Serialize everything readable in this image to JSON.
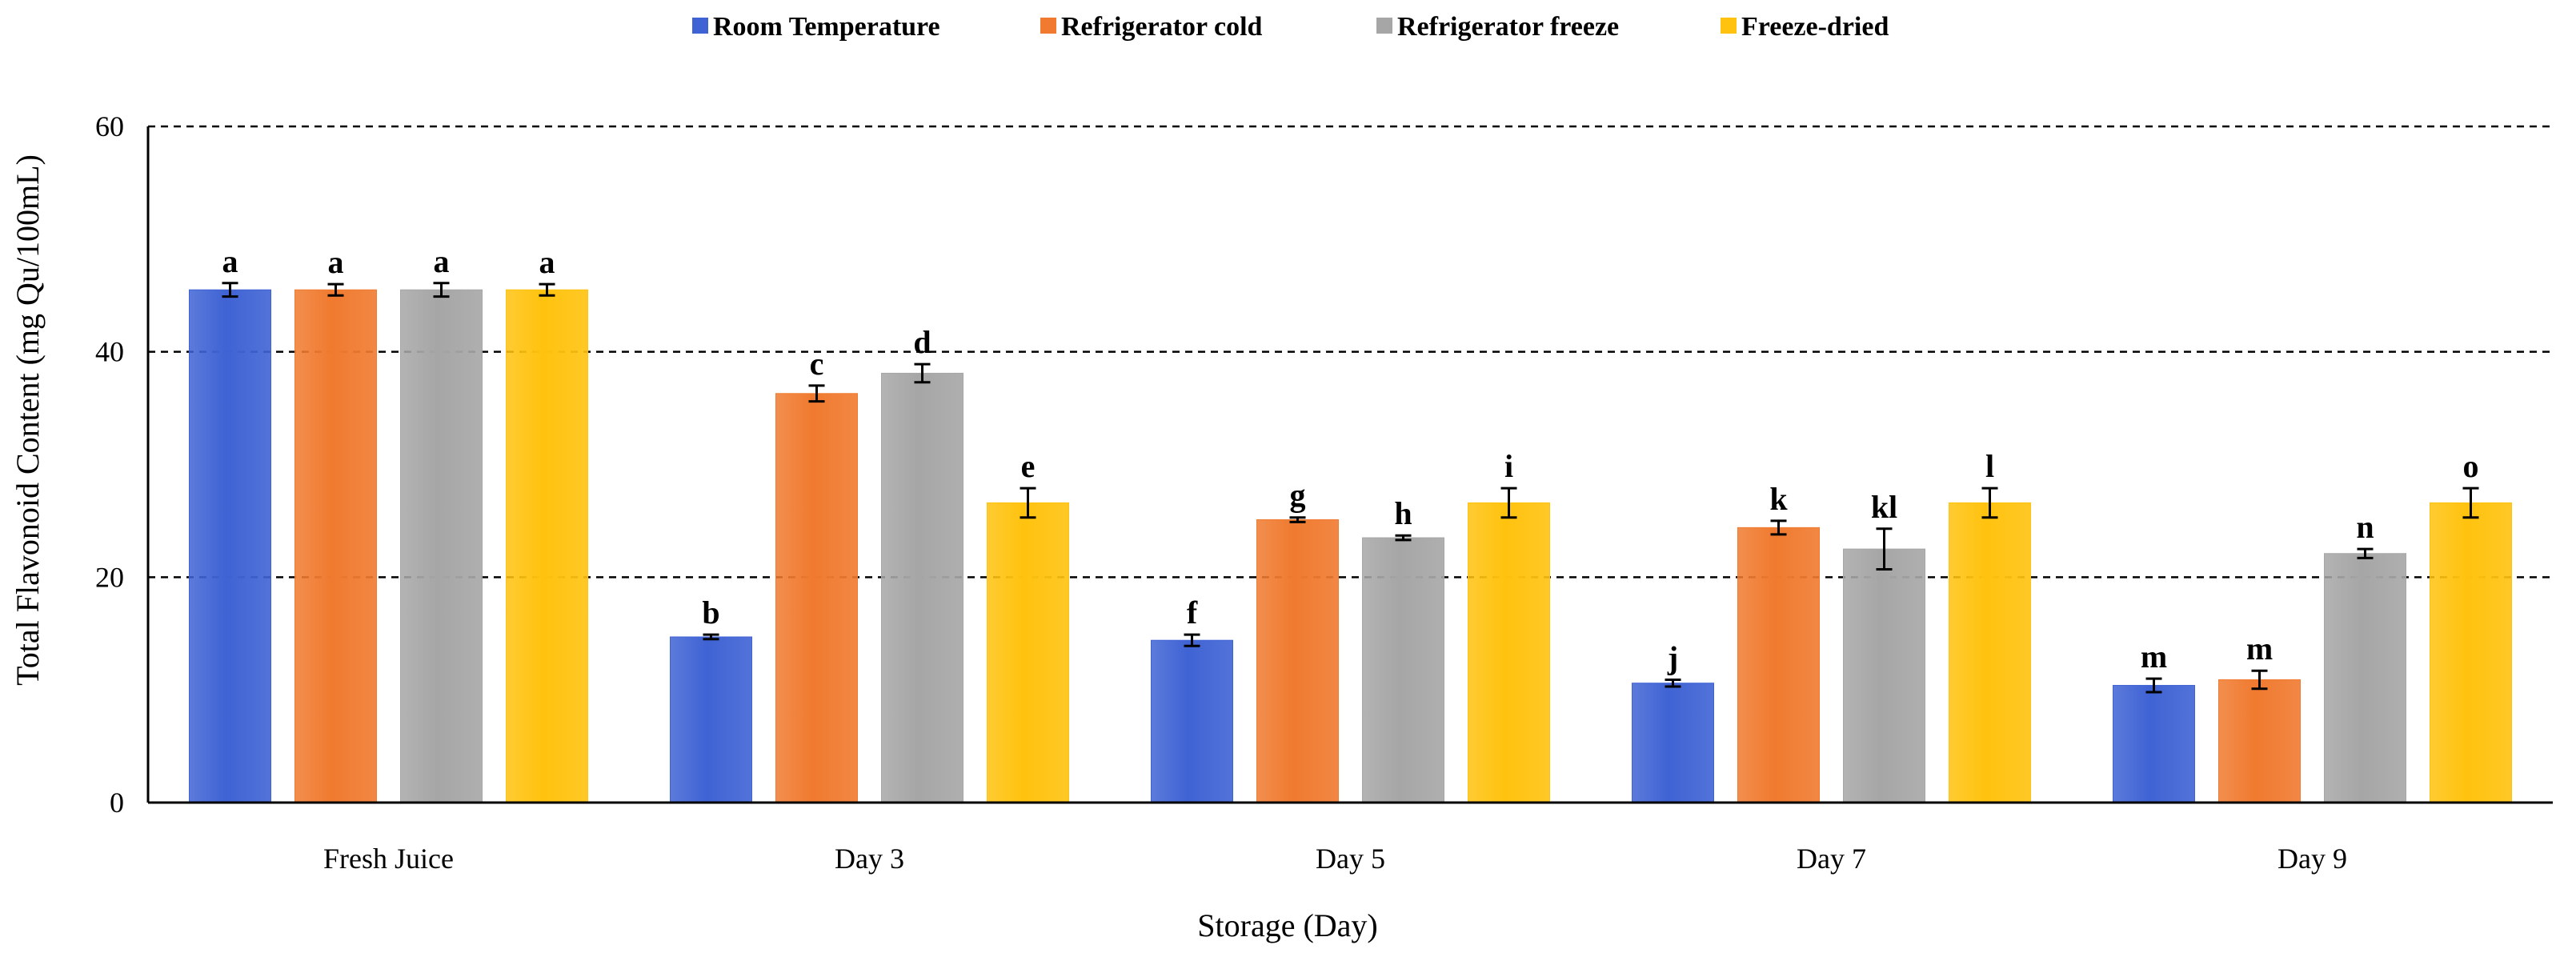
{
  "chart_data": {
    "type": "bar",
    "title": "",
    "xlabel": "Storage (Day)",
    "ylabel": "Total Flavonoid Content (mg Qu/100mL)",
    "ylim": [
      0,
      60
    ],
    "yticks": [
      "0",
      "20",
      "40",
      "60"
    ],
    "grid": "dashed horizontal at 20, 40, 60",
    "legend_position": "top",
    "categories": [
      "Fresh Juice",
      "Day 3",
      "Day 5",
      "Day 7",
      "Day 9"
    ],
    "series": [
      {
        "name": "Room Temperature",
        "color": "#3f63d4",
        "values": [
          45.5,
          14.7,
          14.4,
          10.6,
          10.4
        ],
        "errors": [
          0.6,
          0.2,
          0.5,
          0.3,
          0.6
        ],
        "letters": [
          "a",
          "b",
          "f",
          "j",
          "m"
        ]
      },
      {
        "name": "Refrigerator cold",
        "color": "#f07a2f",
        "values": [
          45.5,
          36.3,
          25.1,
          24.4,
          10.9
        ],
        "errors": [
          0.5,
          0.7,
          0.2,
          0.6,
          0.8
        ],
        "letters": [
          "a",
          "c",
          "g",
          "k",
          "m"
        ]
      },
      {
        "name": "Refrigerator freeze",
        "color": "#a6a6a6",
        "values": [
          45.5,
          38.1,
          23.5,
          22.5,
          22.1
        ],
        "errors": [
          0.6,
          0.8,
          0.2,
          1.8,
          0.4
        ],
        "letters": [
          "a",
          "d",
          "h",
          "kl",
          "n"
        ]
      },
      {
        "name": "Freeze-dried",
        "color": "#ffc20e",
        "values": [
          45.5,
          26.6,
          26.6,
          26.6,
          26.6
        ],
        "errors": [
          0.5,
          1.3,
          1.3,
          1.3,
          1.3
        ],
        "letters": [
          "a",
          "e",
          "i",
          "l",
          "o"
        ]
      }
    ]
  }
}
